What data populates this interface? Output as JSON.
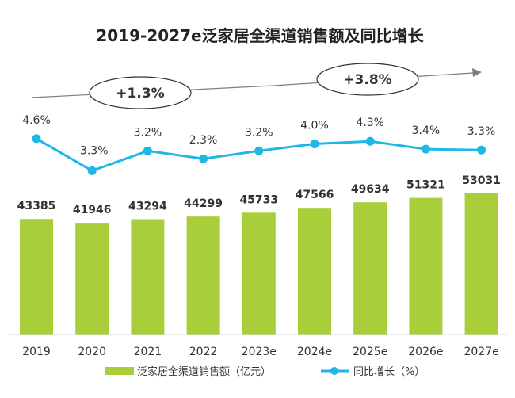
{
  "chart_data": {
    "type": "bar",
    "title": "2019-2027e泛家居全渠道销售额及同比增长",
    "categories": [
      "2019",
      "2020",
      "2021",
      "2022",
      "2023e",
      "2024e",
      "2025e",
      "2026e",
      "2027e"
    ],
    "series": [
      {
        "name": "泛家居全渠道销售额（亿元）",
        "type": "bar",
        "color": "#a8cf3a",
        "values": [
          43385,
          41946,
          43294,
          44299,
          45733,
          47566,
          49634,
          51321,
          53031
        ],
        "labels": [
          "43385",
          "41946",
          "43294",
          "44299",
          "45733",
          "47566",
          "49634",
          "51321",
          "53031"
        ]
      },
      {
        "name": "同比增长（%）",
        "type": "line",
        "color": "#1fb6e8",
        "values": [
          4.6,
          -3.3,
          3.2,
          2.3,
          3.2,
          4.0,
          4.3,
          3.4,
          3.3
        ],
        "labels": [
          "4.6%",
          "-3.3%",
          "3.2%",
          "2.3%",
          "3.2%",
          "4.0%",
          "4.3%",
          "3.4%",
          "3.3%"
        ]
      }
    ],
    "annotations": [
      "+1.3%",
      "+3.8%"
    ],
    "legend_position": "bottom",
    "grid": false
  }
}
